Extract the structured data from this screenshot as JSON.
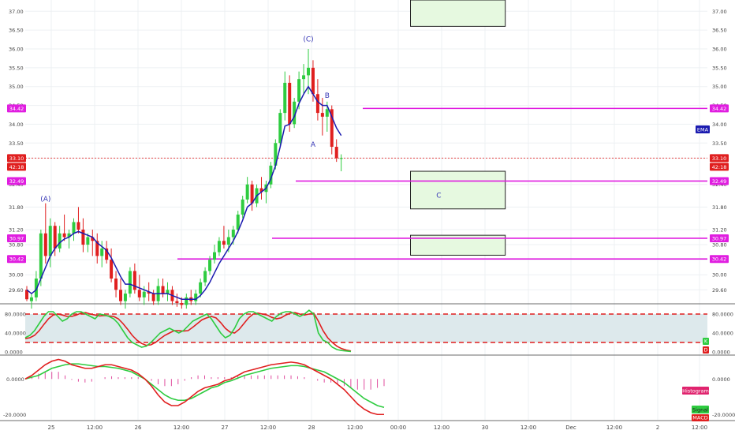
{
  "colors": {
    "up": "#2ecc40",
    "down": "#e01f1f",
    "ema": "#1b1bb0",
    "magenta": "#e01ee0",
    "price_line": "#e64a4a",
    "box_fill": "#e6f9e0",
    "stoch_band": "#dde9ec",
    "stoch_k": "#2ecc40",
    "stoch_d": "#e01f1f",
    "macd": "#e01f1f",
    "signal": "#2ecc40",
    "hist": "#e04c9e",
    "grid": "#edf0f3",
    "axis_text": "#444444"
  },
  "chart_data": {
    "type": "candlestick",
    "x_labels": [
      "25",
      "12:00",
      "26",
      "12:00",
      "27",
      "12:00",
      "28",
      "12:00",
      "00:00",
      "12:00",
      "30",
      "12:00",
      "Dec",
      "12:00",
      "2",
      "12:00"
    ],
    "price_axis": {
      "ylim": [
        29.25,
        37.3
      ],
      "ticks": [
        "29.60",
        "30.00",
        "30.40",
        "30.80",
        "31.20",
        "31.80",
        "32.40",
        "33.10",
        "33.50",
        "34.00",
        "34.50",
        "35.00",
        "35.50",
        "36.00",
        "36.50",
        "37.00"
      ]
    },
    "ohlc": [
      {
        "o": 29.6,
        "h": 29.7,
        "l": 29.3,
        "c": 29.35
      },
      {
        "o": 29.3,
        "h": 29.5,
        "l": 29.1,
        "c": 29.4
      },
      {
        "o": 29.4,
        "h": 30.1,
        "l": 29.3,
        "c": 29.9
      },
      {
        "o": 29.9,
        "h": 31.2,
        "l": 29.7,
        "c": 31.1
      },
      {
        "o": 31.1,
        "h": 31.9,
        "l": 30.3,
        "c": 30.5
      },
      {
        "o": 30.5,
        "h": 31.5,
        "l": 30.2,
        "c": 31.3
      },
      {
        "o": 31.3,
        "h": 31.4,
        "l": 30.5,
        "c": 30.7
      },
      {
        "o": 30.7,
        "h": 31.3,
        "l": 30.6,
        "c": 31.1
      },
      {
        "o": 31.1,
        "h": 31.6,
        "l": 30.9,
        "c": 31.0
      },
      {
        "o": 31.0,
        "h": 31.2,
        "l": 30.7,
        "c": 31.1
      },
      {
        "o": 31.1,
        "h": 31.5,
        "l": 30.9,
        "c": 31.4
      },
      {
        "o": 31.4,
        "h": 31.8,
        "l": 31.1,
        "c": 31.2
      },
      {
        "o": 31.2,
        "h": 31.5,
        "l": 30.6,
        "c": 30.8
      },
      {
        "o": 30.8,
        "h": 31.1,
        "l": 30.6,
        "c": 31.0
      },
      {
        "o": 31.0,
        "h": 31.2,
        "l": 30.5,
        "c": 30.9
      },
      {
        "o": 30.9,
        "h": 31.1,
        "l": 30.3,
        "c": 30.5
      },
      {
        "o": 30.5,
        "h": 30.9,
        "l": 30.2,
        "c": 30.7
      },
      {
        "o": 30.7,
        "h": 30.9,
        "l": 30.3,
        "c": 30.4
      },
      {
        "o": 30.4,
        "h": 30.7,
        "l": 29.8,
        "c": 29.9
      },
      {
        "o": 29.9,
        "h": 30.1,
        "l": 29.4,
        "c": 29.6
      },
      {
        "o": 29.6,
        "h": 29.9,
        "l": 29.2,
        "c": 29.3
      },
      {
        "o": 29.3,
        "h": 29.6,
        "l": 29.1,
        "c": 29.5
      },
      {
        "o": 29.5,
        "h": 30.2,
        "l": 29.4,
        "c": 30.1
      },
      {
        "o": 30.1,
        "h": 30.3,
        "l": 29.5,
        "c": 29.6
      },
      {
        "o": 29.6,
        "h": 30.0,
        "l": 29.3,
        "c": 29.4
      },
      {
        "o": 29.4,
        "h": 29.7,
        "l": 29.2,
        "c": 29.55
      },
      {
        "o": 29.55,
        "h": 29.8,
        "l": 29.3,
        "c": 29.5
      },
      {
        "o": 29.5,
        "h": 29.6,
        "l": 29.2,
        "c": 29.3
      },
      {
        "o": 29.3,
        "h": 29.9,
        "l": 29.2,
        "c": 29.7
      },
      {
        "o": 29.7,
        "h": 29.9,
        "l": 29.4,
        "c": 29.5
      },
      {
        "o": 29.5,
        "h": 29.8,
        "l": 29.3,
        "c": 29.6
      },
      {
        "o": 29.6,
        "h": 29.7,
        "l": 29.2,
        "c": 29.3
      },
      {
        "o": 29.3,
        "h": 29.5,
        "l": 29.15,
        "c": 29.25
      },
      {
        "o": 29.25,
        "h": 29.4,
        "l": 29.1,
        "c": 29.2
      },
      {
        "o": 29.2,
        "h": 29.5,
        "l": 29.1,
        "c": 29.4
      },
      {
        "o": 29.4,
        "h": 29.6,
        "l": 29.2,
        "c": 29.3
      },
      {
        "o": 29.3,
        "h": 29.6,
        "l": 29.2,
        "c": 29.5
      },
      {
        "o": 29.5,
        "h": 29.9,
        "l": 29.4,
        "c": 29.8
      },
      {
        "o": 29.8,
        "h": 30.2,
        "l": 29.7,
        "c": 30.1
      },
      {
        "o": 30.1,
        "h": 30.5,
        "l": 30.0,
        "c": 30.4
      },
      {
        "o": 30.4,
        "h": 30.8,
        "l": 30.3,
        "c": 30.6
      },
      {
        "o": 30.6,
        "h": 31.0,
        "l": 30.5,
        "c": 30.9
      },
      {
        "o": 30.9,
        "h": 31.3,
        "l": 30.7,
        "c": 30.8
      },
      {
        "o": 30.8,
        "h": 31.2,
        "l": 30.6,
        "c": 31.0
      },
      {
        "o": 31.0,
        "h": 31.3,
        "l": 30.8,
        "c": 31.2
      },
      {
        "o": 31.2,
        "h": 31.7,
        "l": 31.1,
        "c": 31.6
      },
      {
        "o": 31.6,
        "h": 32.1,
        "l": 31.5,
        "c": 32.0
      },
      {
        "o": 32.0,
        "h": 32.6,
        "l": 31.9,
        "c": 32.4
      },
      {
        "o": 32.4,
        "h": 32.5,
        "l": 31.7,
        "c": 31.9
      },
      {
        "o": 31.9,
        "h": 32.4,
        "l": 31.8,
        "c": 32.3
      },
      {
        "o": 32.3,
        "h": 32.6,
        "l": 32.0,
        "c": 32.2
      },
      {
        "o": 32.2,
        "h": 32.5,
        "l": 31.9,
        "c": 32.4
      },
      {
        "o": 32.4,
        "h": 33.0,
        "l": 32.3,
        "c": 32.9
      },
      {
        "o": 32.9,
        "h": 33.6,
        "l": 32.8,
        "c": 33.5
      },
      {
        "o": 33.5,
        "h": 34.4,
        "l": 33.4,
        "c": 34.3
      },
      {
        "o": 34.3,
        "h": 35.4,
        "l": 34.1,
        "c": 35.1
      },
      {
        "o": 35.1,
        "h": 35.3,
        "l": 33.8,
        "c": 34.0
      },
      {
        "o": 34.0,
        "h": 34.7,
        "l": 33.9,
        "c": 34.6
      },
      {
        "o": 34.6,
        "h": 35.4,
        "l": 34.4,
        "c": 35.2
      },
      {
        "o": 35.2,
        "h": 35.6,
        "l": 34.8,
        "c": 35.3
      },
      {
        "o": 35.3,
        "h": 36.0,
        "l": 34.8,
        "c": 35.5
      },
      {
        "o": 35.5,
        "h": 35.7,
        "l": 34.6,
        "c": 34.8
      },
      {
        "o": 34.8,
        "h": 35.2,
        "l": 34.1,
        "c": 34.3
      },
      {
        "o": 34.3,
        "h": 34.7,
        "l": 33.7,
        "c": 34.2
      },
      {
        "o": 34.2,
        "h": 34.6,
        "l": 33.8,
        "c": 34.4
      },
      {
        "o": 34.4,
        "h": 34.5,
        "l": 33.2,
        "c": 33.4
      },
      {
        "o": 33.4,
        "h": 33.6,
        "l": 33.0,
        "c": 33.1
      },
      {
        "o": 33.1,
        "h": 33.2,
        "l": 32.75,
        "c": 33.1
      }
    ],
    "ema": [
      29.6,
      29.5,
      29.6,
      29.9,
      30.2,
      30.5,
      30.7,
      30.85,
      30.95,
      31.0,
      31.1,
      31.15,
      31.1,
      31.05,
      31.0,
      30.85,
      30.75,
      30.65,
      30.45,
      30.2,
      29.95,
      29.75,
      29.75,
      29.7,
      29.65,
      29.6,
      29.55,
      29.5,
      29.5,
      29.5,
      29.5,
      29.45,
      29.4,
      29.35,
      29.35,
      29.35,
      29.35,
      29.45,
      29.6,
      29.8,
      30.05,
      30.3,
      30.5,
      30.7,
      30.9,
      31.15,
      31.45,
      31.8,
      31.9,
      32.1,
      32.2,
      32.3,
      32.55,
      32.9,
      33.4,
      33.95,
      34.0,
      34.2,
      34.55,
      34.8,
      35.0,
      34.8,
      34.6,
      34.5,
      34.5,
      34.2,
      33.9,
      33.7
    ],
    "horizontal_lines": [
      {
        "price": 34.42,
        "label": "34.42"
      },
      {
        "price": 32.49,
        "label": "32.49"
      },
      {
        "price": 30.97,
        "label": "30.97"
      },
      {
        "price": 30.42,
        "label": "30.42"
      }
    ],
    "current_price": {
      "price": 33.1,
      "label": "33.10",
      "countdown": "42:18"
    },
    "wave_labels": [
      {
        "text": "(A)",
        "bar": 4,
        "price": 31.95
      },
      {
        "text": "(C)",
        "bar": 60,
        "price": 36.2
      },
      {
        "text": "B",
        "bar": 64,
        "price": 34.7
      },
      {
        "text": "A",
        "bar": 61,
        "price": 33.4
      },
      {
        "text": "C",
        "bar": 73,
        "price": 32.05
      }
    ],
    "target_boxes": [
      {
        "bar_start": 70,
        "bar_end": 86,
        "price_top": 37.3,
        "price_bottom": 36.6
      },
      {
        "bar_start": 70,
        "bar_end": 86,
        "price_top": 32.75,
        "price_bottom": 31.75
      },
      {
        "bar_start": 70,
        "bar_end": 86,
        "price_top": 31.05,
        "price_bottom": 30.52
      }
    ],
    "ema_tag": "EMA",
    "stochastic": {
      "ticks": [
        "80.0000",
        "40.0000",
        "0.0000"
      ],
      "ylim": [
        -5,
        100
      ],
      "upper": 80,
      "lower": 20,
      "k": [
        30,
        35,
        45,
        60,
        75,
        85,
        85,
        75,
        65,
        70,
        80,
        85,
        85,
        80,
        75,
        70,
        80,
        78,
        75,
        70,
        60,
        45,
        30,
        20,
        15,
        10,
        12,
        20,
        30,
        40,
        45,
        50,
        45,
        40,
        45,
        55,
        65,
        70,
        75,
        80,
        70,
        55,
        40,
        30,
        35,
        50,
        70,
        80,
        85,
        85,
        80,
        75,
        70,
        65,
        75,
        82,
        85,
        85,
        80,
        75,
        80,
        88,
        80,
        40,
        25,
        20,
        10,
        5,
        3,
        2,
        1
      ],
      "d": [
        28,
        30,
        35,
        45,
        58,
        70,
        78,
        80,
        78,
        75,
        75,
        78,
        82,
        83,
        80,
        78,
        76,
        77,
        76,
        75,
        70,
        60,
        48,
        35,
        25,
        18,
        14,
        15,
        20,
        28,
        35,
        40,
        45,
        45,
        44,
        45,
        52,
        60,
        68,
        72,
        75,
        72,
        62,
        50,
        42,
        40,
        48,
        60,
        72,
        80,
        82,
        80,
        78,
        73,
        70,
        72,
        78,
        82,
        83,
        80,
        78,
        80,
        82,
        65,
        45,
        30,
        20,
        12,
        7,
        4,
        2
      ],
      "k_tag": "K",
      "d_tag": "D"
    },
    "macd": {
      "ticks": [
        "0.0000",
        "-20.0000"
      ],
      "ylim": [
        -23,
        13
      ],
      "macd": [
        0,
        2,
        5,
        8,
        10,
        11,
        10,
        8,
        7,
        6,
        6,
        7,
        8,
        8,
        7,
        6,
        5,
        3,
        0,
        -4,
        -9,
        -13,
        -15,
        -15,
        -13,
        -10,
        -7,
        -5,
        -4,
        -3,
        -1,
        0,
        2,
        4,
        5,
        6,
        7,
        8,
        8.5,
        9,
        9.5,
        9,
        8,
        6,
        4,
        2,
        0,
        -3,
        -6,
        -10,
        -14,
        -17,
        -19,
        -20,
        -20
      ],
      "signal": [
        0,
        1,
        2,
        4,
        6,
        7,
        8,
        8.5,
        8.5,
        8,
        7.5,
        7,
        7,
        6.5,
        6,
        5,
        4,
        2,
        0,
        -3,
        -6,
        -9,
        -11,
        -12,
        -12,
        -11,
        -9,
        -7,
        -5,
        -4,
        -2,
        -1,
        0.5,
        2,
        3,
        4,
        5,
        6,
        6.5,
        7,
        7.5,
        7.5,
        7,
        6,
        5,
        4,
        2,
        0,
        -2,
        -5,
        -8,
        -11,
        -13,
        -15,
        -16
      ],
      "hist": [
        0,
        1,
        3,
        4,
        4,
        4,
        2,
        -0.5,
        -1.5,
        -2,
        -1.5,
        0,
        1,
        1.5,
        1,
        1,
        1,
        1,
        0,
        -1,
        -3,
        -4,
        -4,
        -3,
        -1,
        1,
        2,
        2,
        1,
        1,
        1,
        1,
        1.5,
        2,
        2,
        2,
        2,
        2,
        2,
        2,
        2,
        1.5,
        1,
        0,
        -1,
        -2,
        -2,
        -3,
        -4,
        -5,
        -6,
        -6,
        -6,
        -5,
        -4
      ],
      "hist_tag": "Histogram",
      "signal_tag": "Signal",
      "macd_tag": "MACD"
    }
  }
}
